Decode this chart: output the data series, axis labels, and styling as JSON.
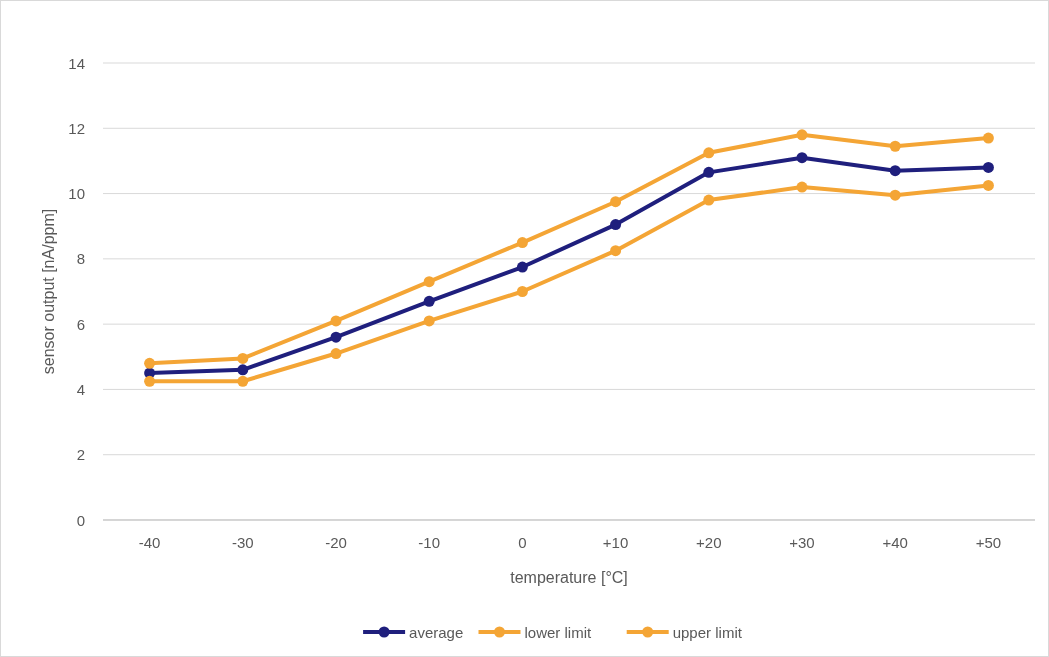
{
  "chart_data": {
    "type": "line",
    "xlabel": "temperature [°C]",
    "ylabel": "sensor output [nA/ppm]",
    "categories": [
      "-40",
      "-30",
      "-20",
      "-10",
      "0",
      "+10",
      "+20",
      "+30",
      "+40",
      "+50"
    ],
    "series": [
      {
        "name": "average",
        "color": "#1f1f7d",
        "values": [
          4.5,
          4.6,
          5.6,
          6.7,
          7.75,
          9.05,
          10.65,
          11.1,
          10.7,
          10.8
        ]
      },
      {
        "name": "lower limit",
        "color": "#f4a535",
        "values": [
          4.25,
          4.25,
          5.1,
          6.1,
          7.0,
          8.25,
          9.8,
          10.2,
          9.95,
          10.25
        ]
      },
      {
        "name": "upper limit",
        "color": "#f4a535",
        "values": [
          4.8,
          4.95,
          6.1,
          7.3,
          8.5,
          9.75,
          11.25,
          11.8,
          11.45,
          11.7
        ]
      }
    ],
    "ylim": [
      0,
      14
    ],
    "yticks": [
      0,
      2,
      4,
      6,
      8,
      10,
      12,
      14
    ],
    "grid": "y",
    "legend": "bottom",
    "marker": "circle",
    "line_style": "solid"
  }
}
